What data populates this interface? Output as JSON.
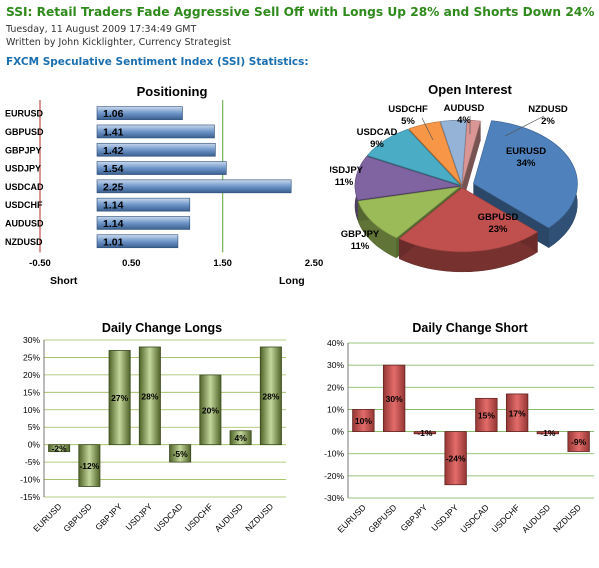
{
  "header": {
    "title": "SSI: Retail Traders Fade Aggressive Sell Off with Longs Up 28% and Shorts Down 24%",
    "timestamp": "Tuesday, 11 August 2009 17:34:49 GMT",
    "byline": "Written by John Kicklighter, Currency Strategist",
    "subtitle": "FXCM Speculative Sentiment Index (SSI) Statistics:"
  },
  "chart_data": [
    {
      "type": "bar",
      "orientation": "horizontal",
      "title": "Positioning",
      "categories": [
        "EURUSD",
        "GBPUSD",
        "GBPJPY",
        "USDJPY",
        "USDCAD",
        "USDCHF",
        "AUDUSD",
        "NZDUSD"
      ],
      "values": [
        1.06,
        1.41,
        1.42,
        1.54,
        2.25,
        1.14,
        1.14,
        1.01
      ],
      "data_labels": [
        "1.06",
        "1.41",
        "1.42",
        "1.54",
        "2.25",
        "1.14",
        "1.14",
        "1.01"
      ],
      "xlim": [
        -0.5,
        2.5
      ],
      "x_ticks": [
        "-0.50",
        "0.50",
        "1.50",
        "2.50"
      ],
      "x_tick_values": [
        -0.5,
        0.5,
        1.5,
        2.5
      ],
      "left_label": "Short",
      "right_label": "Long",
      "reference_lines": [
        -0.5,
        1.5
      ],
      "color": "#4a7ebb"
    },
    {
      "type": "pie",
      "title": "Open Interest",
      "labels": [
        "EURUSD",
        "GBPUSD",
        "GBPJPY",
        "USDJPY",
        "USDCAD",
        "USDCHF",
        "AUDUSD",
        "NZDUSD"
      ],
      "values": [
        34,
        23,
        11,
        11,
        9,
        5,
        4,
        2
      ],
      "value_labels": [
        "34%",
        "23%",
        "11%",
        "11%",
        "9%",
        "5%",
        "4%",
        "2%"
      ],
      "colors": [
        "#4f81bd",
        "#c0504d",
        "#9bbb59",
        "#8064a2",
        "#4bacc6",
        "#f79646",
        "#95b3d7",
        "#d99694"
      ]
    },
    {
      "type": "bar",
      "title": "Daily Change Longs",
      "categories": [
        "EURUSD",
        "GBPUSD",
        "GBPJPY",
        "USDJPY",
        "USDCAD",
        "USDCHF",
        "AUDUSD",
        "NZDUSD"
      ],
      "values": [
        -2,
        -12,
        27,
        28,
        -5,
        20,
        4,
        28
      ],
      "data_labels": [
        "-2%",
        "-12%",
        "27%",
        "28%",
        "-5%",
        "20%",
        "4%",
        "28%"
      ],
      "ylim": [
        -15,
        30
      ],
      "y_ticks": [
        "-15%",
        "-10%",
        "-5%",
        "0%",
        "5%",
        "10%",
        "15%",
        "20%",
        "25%",
        "30%"
      ],
      "y_tick_values": [
        -15,
        -10,
        -5,
        0,
        5,
        10,
        15,
        20,
        25,
        30
      ],
      "grid": true,
      "color": "#77933c"
    },
    {
      "type": "bar",
      "title": "Daily Change Short",
      "categories": [
        "EURUSD",
        "GBPUSD",
        "GBPJPY",
        "USDJPY",
        "USDCAD",
        "USDCHF",
        "AUDUSD",
        "NZDUSD"
      ],
      "values": [
        10,
        30,
        -1,
        -24,
        15,
        17,
        -1,
        -9
      ],
      "data_labels": [
        "10%",
        "30%",
        "-1%",
        "-24%",
        "15%",
        "17%",
        "-1%",
        "-9%"
      ],
      "ylim": [
        -30,
        40
      ],
      "y_ticks": [
        "-30%",
        "-20%",
        "-10%",
        "0%",
        "10%",
        "20%",
        "30%",
        "40%"
      ],
      "y_tick_values": [
        -30,
        -20,
        -10,
        0,
        10,
        20,
        30,
        40
      ],
      "grid": true,
      "color": "#c0504d"
    }
  ]
}
